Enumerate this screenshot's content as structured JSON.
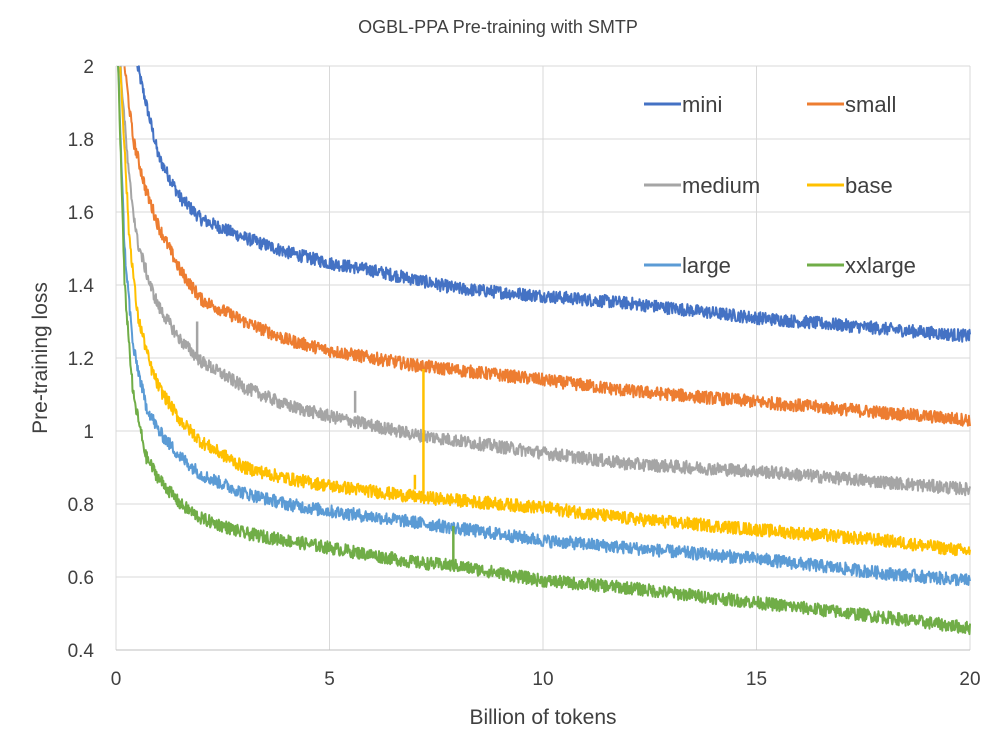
{
  "chart_data": {
    "type": "line",
    "title": "OGBL-PPA Pre-training with SMTP",
    "xlabel": "Billion of tokens",
    "ylabel": "Pre-training loss",
    "xlim": [
      0,
      20
    ],
    "ylim": [
      0.4,
      2
    ],
    "xticks": [
      0,
      5,
      10,
      15,
      20
    ],
    "yticks": [
      0.4,
      0.6,
      0.8,
      1,
      1.2,
      1.4,
      1.6,
      1.8,
      2
    ],
    "ytick_labels": [
      "0.4",
      "0.6",
      "0.8",
      "1",
      "1.2",
      "1.4",
      "1.6",
      "1.8",
      "2"
    ],
    "grid": true,
    "legend_position": "top-right",
    "series": [
      {
        "name": "mini",
        "color": "#4472C4",
        "x": [
          0.5,
          1,
          1.5,
          2,
          3,
          4,
          5,
          6,
          8,
          10,
          12,
          15,
          18,
          20
        ],
        "y": [
          2.0,
          1.75,
          1.64,
          1.58,
          1.53,
          1.49,
          1.46,
          1.44,
          1.39,
          1.37,
          1.35,
          1.31,
          1.28,
          1.26
        ]
      },
      {
        "name": "small",
        "color": "#ED7D31",
        "x": [
          0.2,
          0.4,
          0.7,
          1,
          1.5,
          2,
          3,
          4,
          5,
          7,
          10,
          12,
          15,
          18,
          20
        ],
        "y": [
          2.0,
          1.8,
          1.66,
          1.56,
          1.44,
          1.36,
          1.3,
          1.25,
          1.22,
          1.18,
          1.14,
          1.11,
          1.08,
          1.05,
          1.03
        ]
      },
      {
        "name": "medium",
        "color": "#A5A5A5",
        "x": [
          0.1,
          0.3,
          0.5,
          0.8,
          1,
          1.5,
          2,
          3,
          4,
          5,
          7,
          10,
          12,
          15,
          18,
          20
        ],
        "y": [
          2.0,
          1.7,
          1.52,
          1.4,
          1.34,
          1.25,
          1.19,
          1.12,
          1.07,
          1.04,
          0.99,
          0.94,
          0.91,
          0.89,
          0.86,
          0.84
        ]
      },
      {
        "name": "base",
        "color": "#FFC000",
        "x": [
          0.1,
          0.3,
          0.5,
          0.8,
          1,
          1.5,
          2,
          3,
          4,
          5,
          7,
          10,
          12,
          15,
          18,
          20
        ],
        "y": [
          2.0,
          1.55,
          1.32,
          1.18,
          1.12,
          1.03,
          0.97,
          0.9,
          0.87,
          0.85,
          0.82,
          0.79,
          0.76,
          0.73,
          0.7,
          0.67
        ]
      },
      {
        "name": "large",
        "color": "#5B9BD5",
        "x": [
          0.05,
          0.2,
          0.4,
          0.7,
          1,
          1.5,
          2,
          3,
          4,
          5,
          7,
          10,
          12,
          15,
          18,
          20
        ],
        "y": [
          2.0,
          1.5,
          1.23,
          1.07,
          1.0,
          0.93,
          0.88,
          0.83,
          0.8,
          0.78,
          0.75,
          0.7,
          0.68,
          0.65,
          0.61,
          0.59
        ]
      },
      {
        "name": "xxlarge",
        "color": "#70AD47",
        "x": [
          0.05,
          0.2,
          0.4,
          0.7,
          1,
          1.5,
          2,
          3,
          4,
          5,
          6,
          7,
          8,
          10,
          12,
          15,
          18,
          20
        ],
        "y": [
          2.0,
          1.4,
          1.1,
          0.93,
          0.87,
          0.8,
          0.76,
          0.72,
          0.7,
          0.68,
          0.66,
          0.64,
          0.63,
          0.59,
          0.57,
          0.53,
          0.49,
          0.46
        ]
      }
    ],
    "annotations": [
      {
        "series": "base",
        "type": "spike",
        "x": 7.0,
        "y_from": 0.84,
        "y_to": 0.88
      },
      {
        "series": "base",
        "type": "spike",
        "x": 7.2,
        "y_from": 0.83,
        "y_to": 1.17
      },
      {
        "series": "xxlarge",
        "type": "spike",
        "x": 7.9,
        "y_from": 0.62,
        "y_to": 0.74
      },
      {
        "series": "medium",
        "type": "spike",
        "x": 5.6,
        "y_from": 1.05,
        "y_to": 1.11
      },
      {
        "series": "medium",
        "type": "spike",
        "x": 1.9,
        "y_from": 1.2,
        "y_to": 1.3
      }
    ]
  }
}
